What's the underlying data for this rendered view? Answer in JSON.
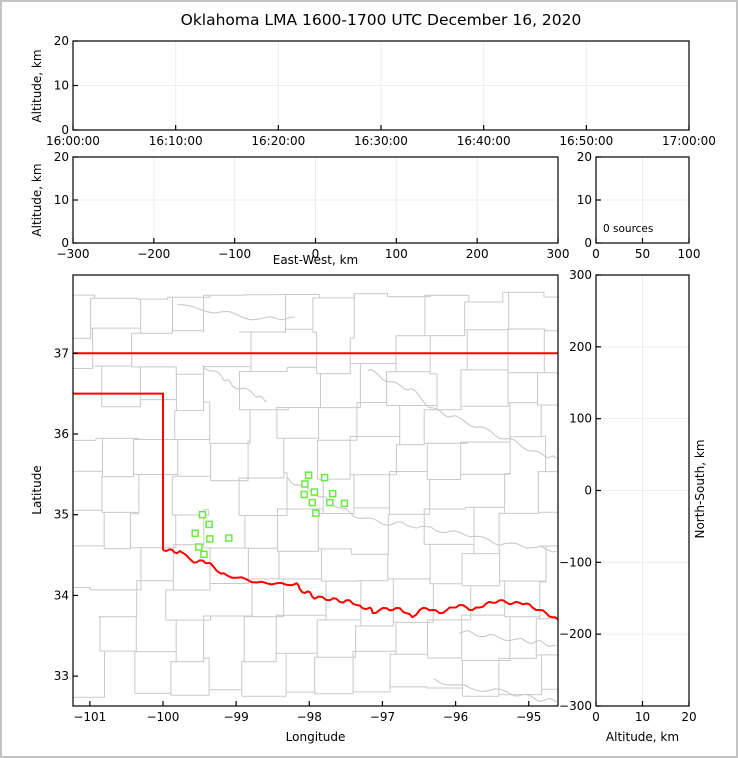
{
  "title": "Oklahoma LMA 1600-1700 UTC December 16, 2020",
  "window": {
    "background": "#ffffff",
    "border_color": "#c3c3c3"
  },
  "colors": {
    "frame": "#000000",
    "text": "#000000",
    "gridline": "#ededed",
    "county_line": "#c9c9c9",
    "river_line": "#c9c9c9",
    "state_border": "#ff0000",
    "station_marker": "#6ce843",
    "station_fill": "#ffffff"
  },
  "chart_data": [
    {
      "id": "time_height",
      "type": "scatter",
      "ylabel": "Altitude, km",
      "xlim": [
        0,
        60
      ],
      "ylim": [
        0,
        20
      ],
      "xticks": [
        0,
        10,
        20,
        30,
        40,
        50,
        60
      ],
      "xtick_labels": [
        "16:00:00",
        "16:10:00",
        "16:20:00",
        "16:30:00",
        "16:40:00",
        "16:50:00",
        "17:00:00"
      ],
      "yticks": [
        0,
        10,
        20
      ],
      "ytick_labels": [
        "0",
        "10",
        "20"
      ],
      "xgrid": [
        10,
        20,
        30,
        40,
        50
      ],
      "ygrid": [
        10
      ],
      "points": []
    },
    {
      "id": "ew_height",
      "type": "scatter",
      "xlabel": "East-West, km",
      "ylabel": "Altitude, km",
      "xlim": [
        -300,
        300
      ],
      "ylim": [
        0,
        20
      ],
      "xticks": [
        -300,
        -200,
        -100,
        0,
        100,
        200,
        300
      ],
      "xtick_labels": [
        "−300",
        "−200",
        "−100",
        "0",
        "100",
        "200",
        "300"
      ],
      "yticks": [
        0,
        10,
        20
      ],
      "ytick_labels": [
        "0",
        "10",
        "20"
      ],
      "xgrid": [
        -200,
        -100,
        0,
        100,
        200
      ],
      "ygrid": [
        10
      ],
      "points": []
    },
    {
      "id": "source_histogram",
      "type": "bar",
      "annotation": "0 sources",
      "source_count": 0,
      "xlim": [
        0,
        100
      ],
      "ylim": [
        0,
        20
      ],
      "xticks": [
        0,
        50,
        100
      ],
      "xtick_labels": [
        "0",
        "50",
        "100"
      ],
      "yticks": [
        0,
        10,
        20
      ],
      "ytick_labels": [
        "0",
        "10",
        "20"
      ],
      "xgrid": [
        50
      ],
      "ygrid": [
        10
      ],
      "points": []
    },
    {
      "id": "plan_view_map",
      "type": "scatter",
      "xlabel": "Longitude",
      "ylabel": "Latitude",
      "xlim": [
        -101.23,
        -94.6
      ],
      "ylim": [
        32.63,
        37.97
      ],
      "xticks": [
        -101,
        -100,
        -99,
        -98,
        -97,
        -96,
        -95
      ],
      "xtick_labels": [
        "−101",
        "−100",
        "−99",
        "−98",
        "−97",
        "−96",
        "−95"
      ],
      "yticks": [
        33,
        34,
        35,
        36,
        37
      ],
      "ytick_labels": [
        "33",
        "34",
        "35",
        "36",
        "37"
      ],
      "xgrid": [],
      "ygrid": [],
      "points": [],
      "stations_lon_lat": [
        [
          -99.46,
          35.0
        ],
        [
          -99.37,
          34.88
        ],
        [
          -99.56,
          34.77
        ],
        [
          -99.36,
          34.7
        ],
        [
          -99.1,
          34.71
        ],
        [
          -99.51,
          34.6
        ],
        [
          -99.44,
          34.51
        ],
        [
          -98.01,
          35.49
        ],
        [
          -97.79,
          35.46
        ],
        [
          -98.06,
          35.38
        ],
        [
          -98.07,
          35.25
        ],
        [
          -97.93,
          35.28
        ],
        [
          -97.68,
          35.26
        ],
        [
          -97.96,
          35.15
        ],
        [
          -97.72,
          35.15
        ],
        [
          -97.52,
          35.14
        ],
        [
          -97.91,
          35.02
        ]
      ],
      "state_border": {
        "north_line": [
          [
            -101.23,
            37.0
          ],
          [
            -94.6,
            37.0
          ]
        ],
        "panhandle": [
          [
            -101.23,
            36.5
          ],
          [
            -100.0,
            36.5
          ],
          [
            -100.0,
            34.56
          ]
        ],
        "red_river": [
          [
            -100.0,
            34.56
          ],
          [
            -99.91,
            34.57
          ],
          [
            -99.84,
            34.53
          ],
          [
            -99.77,
            34.55
          ],
          [
            -99.61,
            34.43
          ],
          [
            -99.54,
            34.41
          ],
          [
            -99.45,
            34.43
          ],
          [
            -99.39,
            34.4
          ],
          [
            -99.32,
            34.37
          ],
          [
            -99.21,
            34.27
          ],
          [
            -99.13,
            34.25
          ],
          [
            -98.99,
            34.22
          ],
          [
            -98.86,
            34.2
          ],
          [
            -98.72,
            34.16
          ],
          [
            -98.58,
            34.15
          ],
          [
            -98.45,
            34.15
          ],
          [
            -98.31,
            34.13
          ],
          [
            -98.17,
            34.15
          ],
          [
            -98.13,
            34.08
          ],
          [
            -98.06,
            34.03
          ],
          [
            -97.99,
            34.04
          ],
          [
            -97.93,
            33.96
          ],
          [
            -97.82,
            33.98
          ],
          [
            -97.72,
            33.94
          ],
          [
            -97.63,
            33.96
          ],
          [
            -97.54,
            33.91
          ],
          [
            -97.45,
            33.94
          ],
          [
            -97.35,
            33.88
          ],
          [
            -97.27,
            33.84
          ],
          [
            -97.17,
            33.85
          ],
          [
            -97.13,
            33.78
          ],
          [
            -97.04,
            33.82
          ],
          [
            -96.94,
            33.84
          ],
          [
            -96.86,
            33.82
          ],
          [
            -96.76,
            33.84
          ],
          [
            -96.67,
            33.78
          ],
          [
            -96.59,
            33.73
          ],
          [
            -96.49,
            33.82
          ],
          [
            -96.4,
            33.84
          ],
          [
            -96.31,
            33.82
          ],
          [
            -96.22,
            33.78
          ],
          [
            -96.12,
            33.82
          ],
          [
            -96.04,
            33.85
          ],
          [
            -95.95,
            33.88
          ],
          [
            -95.85,
            33.85
          ],
          [
            -95.77,
            33.82
          ],
          [
            -95.67,
            33.85
          ],
          [
            -95.58,
            33.9
          ],
          [
            -95.5,
            33.91
          ],
          [
            -95.4,
            33.94
          ],
          [
            -95.3,
            33.91
          ],
          [
            -95.22,
            33.9
          ],
          [
            -95.13,
            33.91
          ],
          [
            -95.03,
            33.9
          ],
          [
            -94.95,
            33.85
          ],
          [
            -94.85,
            33.82
          ],
          [
            -94.76,
            33.78
          ],
          [
            -94.68,
            33.73
          ],
          [
            -94.6,
            33.7
          ]
        ]
      },
      "counties": {
        "lat_start": 32.8,
        "lat_step": 0.445,
        "rows": 12,
        "lon_start": -101.4,
        "lon_step": 0.505,
        "cols": 15,
        "jitter_lat": 0.07,
        "jitter_lon": 0.1,
        "skip": 0.12,
        "seed": 7
      },
      "rivers": [
        [
          [
            -99.8,
            37.6
          ],
          [
            -99.2,
            37.5
          ],
          [
            -98.6,
            37.42
          ],
          [
            -98.2,
            37.45
          ]
        ],
        [
          [
            -99.46,
            36.85
          ],
          [
            -99.2,
            36.72
          ],
          [
            -99.05,
            36.6
          ],
          [
            -98.75,
            36.5
          ],
          [
            -98.58,
            36.4
          ]
        ],
        [
          [
            -97.2,
            36.8
          ],
          [
            -96.9,
            36.65
          ],
          [
            -96.6,
            36.55
          ],
          [
            -96.3,
            36.3
          ],
          [
            -96.0,
            36.2
          ],
          [
            -95.6,
            36.05
          ],
          [
            -95.2,
            35.9
          ],
          [
            -94.85,
            35.75
          ],
          [
            -94.62,
            35.7
          ]
        ],
        [
          [
            -98.3,
            35.45
          ],
          [
            -98.0,
            35.3
          ],
          [
            -97.7,
            35.15
          ],
          [
            -97.4,
            35.0
          ],
          [
            -97.0,
            34.9
          ],
          [
            -96.6,
            34.87
          ],
          [
            -96.2,
            34.8
          ],
          [
            -95.8,
            34.75
          ],
          [
            -95.4,
            34.65
          ],
          [
            -94.95,
            34.6
          ],
          [
            -94.62,
            34.55
          ]
        ],
        [
          [
            -95.95,
            33.55
          ],
          [
            -95.6,
            33.5
          ],
          [
            -95.2,
            33.45
          ],
          [
            -94.9,
            33.42
          ],
          [
            -94.62,
            33.38
          ]
        ],
        [
          [
            -96.3,
            32.95
          ],
          [
            -95.8,
            32.85
          ],
          [
            -95.3,
            32.8
          ],
          [
            -94.9,
            32.72
          ],
          [
            -94.62,
            32.68
          ]
        ]
      ]
    },
    {
      "id": "ns_height",
      "type": "scatter",
      "xlabel": "Altitude, km",
      "ylabel_right": "North-South, km",
      "xlim": [
        0,
        20
      ],
      "ylim": [
        -300,
        300
      ],
      "xticks": [
        0,
        10,
        20
      ],
      "xtick_labels": [
        "0",
        "10",
        "20"
      ],
      "yticks": [
        -300,
        -200,
        -100,
        0,
        100,
        200,
        300
      ],
      "ytick_labels": [
        "−300",
        "−200",
        "−100",
        "0",
        "100",
        "200",
        "300"
      ],
      "xgrid": [
        10
      ],
      "ygrid": [
        -200,
        -100,
        0,
        100,
        200
      ],
      "points": []
    }
  ]
}
